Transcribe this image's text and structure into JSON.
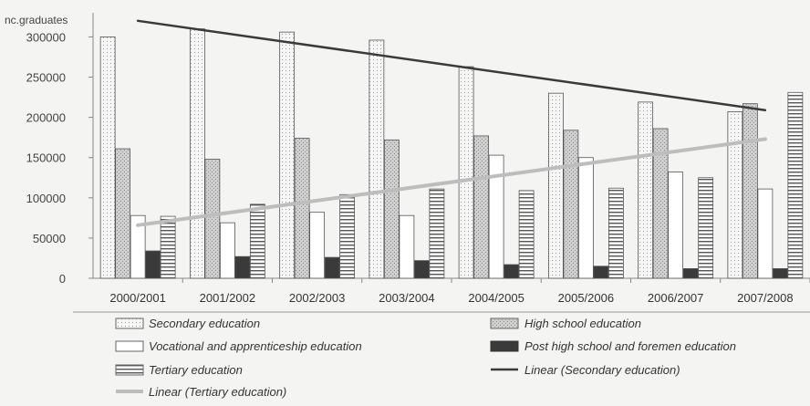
{
  "chart_data": {
    "type": "bar",
    "ylabel": "nc.graduates",
    "ylim": [
      0,
      330000
    ],
    "yticks": [
      0,
      50000,
      100000,
      150000,
      200000,
      250000,
      300000
    ],
    "categories": [
      "2000/2001",
      "2001/2002",
      "2002/2003",
      "2003/2004",
      "2004/2005",
      "2005/2006",
      "2006/2007",
      "2007/2008"
    ],
    "series": [
      {
        "name": "Secondary education",
        "pattern": "dotted",
        "color": "#f3f3f3",
        "values": [
          300000,
          310000,
          306000,
          296000,
          263000,
          230000,
          219000,
          207000
        ]
      },
      {
        "name": "High school education",
        "pattern": "speckled",
        "color": "#c8c8c8",
        "values": [
          161000,
          148000,
          174000,
          172000,
          177000,
          184000,
          186000,
          217000
        ]
      },
      {
        "name": "Vocational and apprenticeship education",
        "pattern": "plain",
        "color": "#ffffff",
        "values": [
          78000,
          69000,
          82000,
          78000,
          153000,
          150000,
          132000,
          111000
        ]
      },
      {
        "name": "Post high school and foremen education",
        "pattern": "dark",
        "color": "#3a3a3a",
        "values": [
          34000,
          27000,
          26000,
          22000,
          17000,
          15000,
          12000,
          12000
        ]
      },
      {
        "name": "Tertiary education",
        "pattern": "horizontal-lines",
        "color": "#ffffff",
        "values": [
          77000,
          92000,
          104000,
          111000,
          109000,
          112000,
          125000,
          231000
        ]
      }
    ],
    "trendlines": [
      {
        "name": "Linear (Secondary education)",
        "color": "#3a3a3a",
        "from": 320000,
        "to": 209000
      },
      {
        "name": "Linear (Tertiary education)",
        "color": "#bdbdbd",
        "from": 66000,
        "to": 173000
      }
    ],
    "grid": false,
    "legend_position": "bottom"
  }
}
